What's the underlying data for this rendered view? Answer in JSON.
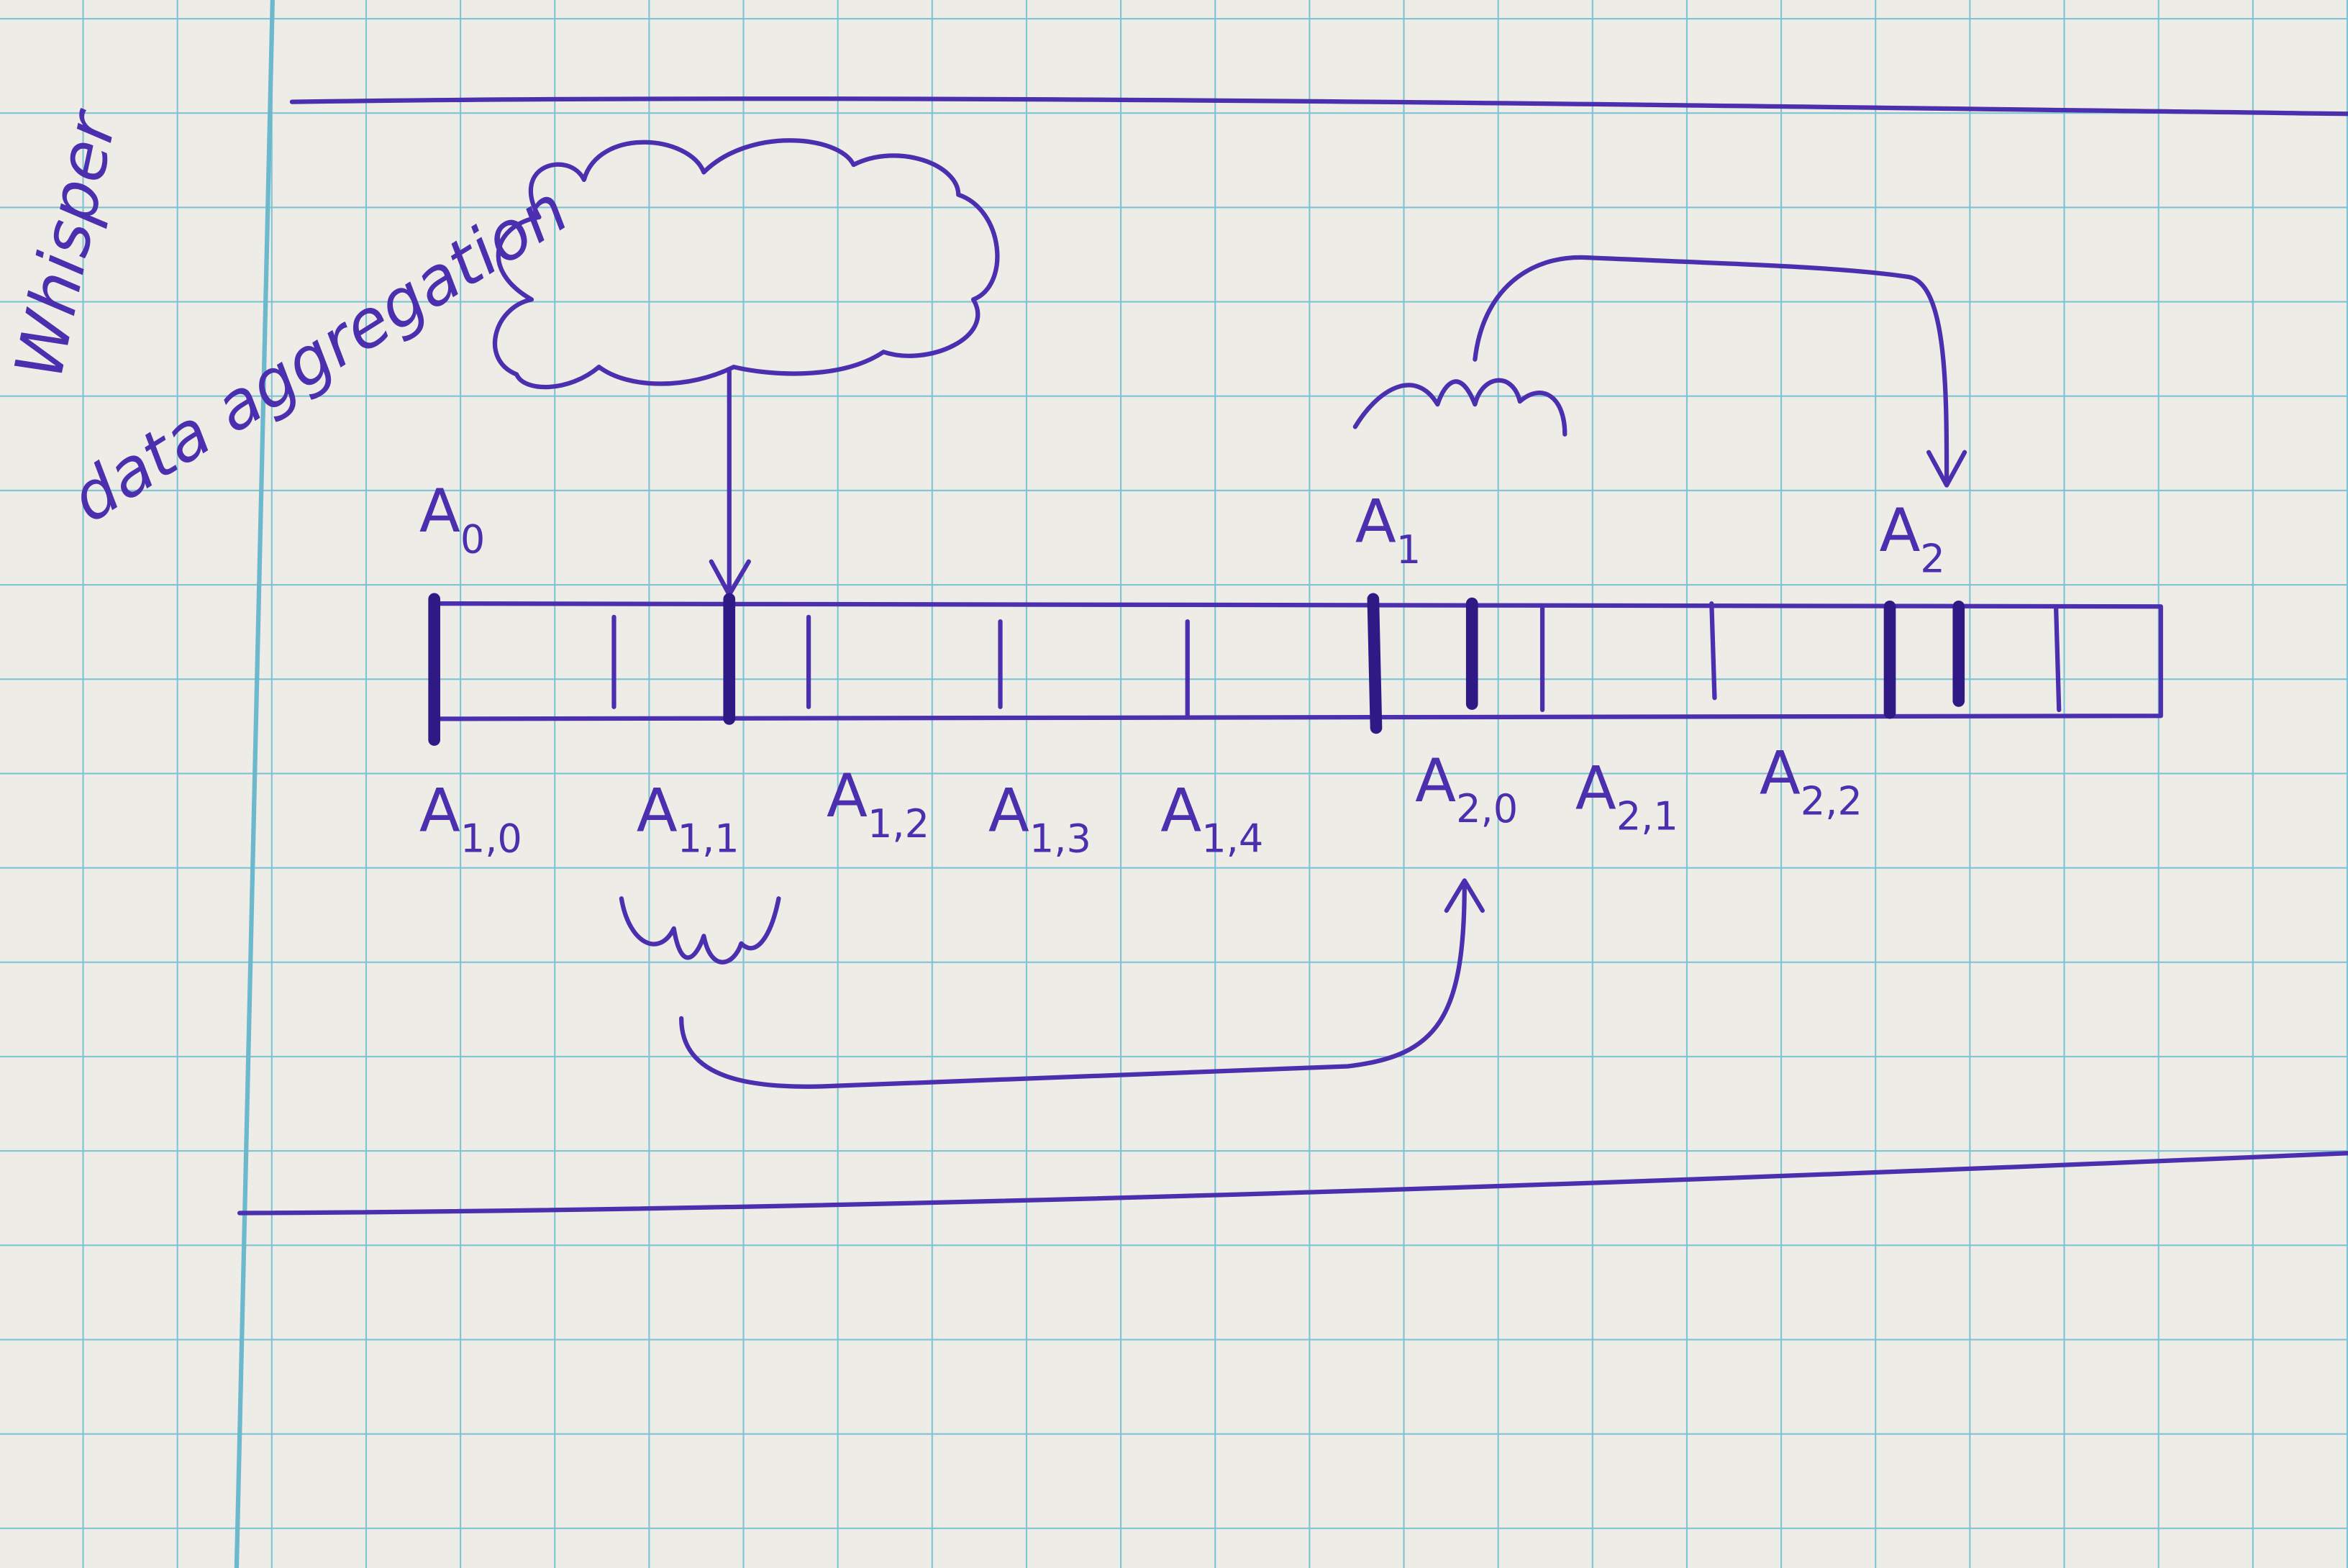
{
  "notes": {
    "title": "Whisper",
    "subtitle": "data aggregation"
  },
  "markers": [
    {
      "base": "A",
      "sub": "0"
    },
    {
      "base": "A",
      "sub": "1"
    },
    {
      "base": "A",
      "sub": "2"
    }
  ],
  "cells": [
    {
      "base": "A",
      "sub": "1,0"
    },
    {
      "base": "A",
      "sub": "1,1"
    },
    {
      "base": "A",
      "sub": "1,2"
    },
    {
      "base": "A",
      "sub": "1,3"
    },
    {
      "base": "A",
      "sub": "1,4"
    },
    {
      "base": "A",
      "sub": "2,0"
    },
    {
      "base": "A",
      "sub": "2,1"
    },
    {
      "base": "A",
      "sub": "2,2"
    }
  ]
}
